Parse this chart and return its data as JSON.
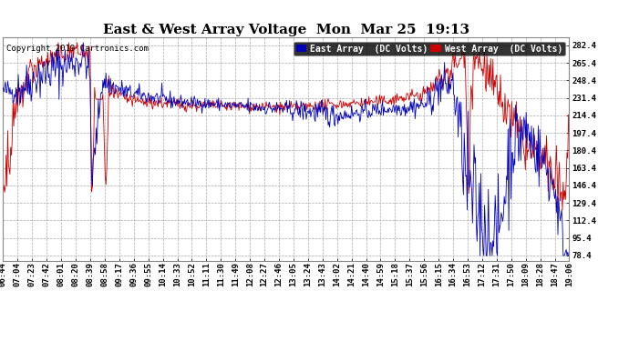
{
  "title": "East & West Array Voltage  Mon  Mar 25  19:13",
  "copyright": "Copyright 2019 Cartronics.com",
  "legend_east": "East Array  (DC Volts)",
  "legend_west": "West Array  (DC Volts)",
  "east_color": "#0000bb",
  "west_color": "#cc0000",
  "bg_color": "#ffffff",
  "plot_bg_color": "#ffffff",
  "grid_color": "#aaaaaa",
  "yticks": [
    78.4,
    95.4,
    112.4,
    129.4,
    146.4,
    163.4,
    180.4,
    197.4,
    214.4,
    231.4,
    248.4,
    265.4,
    282.4
  ],
  "ymin": 73.0,
  "ymax": 290.0,
  "xtick_labels": [
    "06:44",
    "07:04",
    "07:23",
    "07:42",
    "08:01",
    "08:20",
    "08:39",
    "08:58",
    "09:17",
    "09:36",
    "09:55",
    "10:14",
    "10:33",
    "10:52",
    "11:11",
    "11:30",
    "11:49",
    "12:08",
    "12:27",
    "12:46",
    "13:05",
    "13:24",
    "13:43",
    "14:02",
    "14:21",
    "14:40",
    "14:59",
    "15:18",
    "15:37",
    "15:56",
    "16:15",
    "16:34",
    "16:53",
    "17:12",
    "17:31",
    "17:50",
    "18:09",
    "18:28",
    "18:47",
    "19:06"
  ],
  "title_fontsize": 11,
  "axis_fontsize": 6.5,
  "copyright_fontsize": 6.5,
  "legend_fontsize": 7,
  "legend_bg_east": "#0000bb",
  "legend_bg_west": "#cc0000"
}
